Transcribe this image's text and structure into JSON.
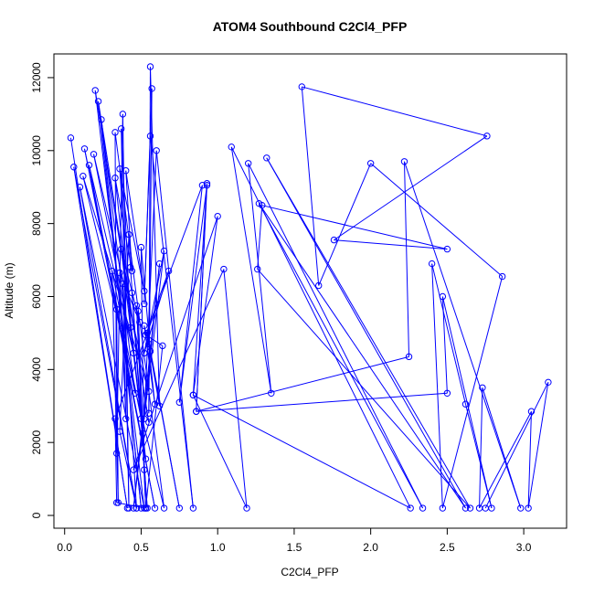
{
  "chart_data": {
    "type": "scatter",
    "title": "ATOM4 Southbound C2Cl4_PFP",
    "xlabel": "C2Cl4_PFP",
    "ylabel": "Altitude (m)",
    "xlim": [
      -0.07,
      3.28
    ],
    "ylim": [
      -350,
      12650
    ],
    "xticks": [
      0.0,
      0.5,
      1.0,
      1.5,
      2.0,
      2.5,
      3.0
    ],
    "xtick_labels": [
      "0.0",
      "0.5",
      "1.0",
      "1.5",
      "2.0",
      "2.5",
      "3.0"
    ],
    "yticks": [
      0,
      2000,
      4000,
      6000,
      8000,
      10000,
      12000
    ],
    "ytick_labels": [
      "0",
      "2000",
      "4000",
      "6000",
      "8000",
      "10000",
      "12000"
    ],
    "grid": false,
    "legend": "none",
    "marker": "open-circle",
    "connected": true,
    "color": "#0000ff",
    "series": [
      {
        "points": [
          [
            0.04,
            10350
          ],
          [
            0.41,
            200
          ],
          [
            0.06,
            9550
          ],
          [
            0.47,
            200
          ],
          [
            0.1,
            9000
          ],
          [
            0.52,
            200
          ],
          [
            0.2,
            11650
          ],
          [
            0.55,
            2550
          ],
          [
            0.22,
            11350
          ],
          [
            0.5,
            200
          ],
          [
            0.24,
            10850
          ],
          [
            0.46,
            3350
          ],
          [
            0.13,
            10050
          ],
          [
            0.59,
            200
          ],
          [
            0.16,
            9600
          ],
          [
            0.45,
            4450
          ],
          [
            0.19,
            9900
          ],
          [
            0.55,
            3400
          ],
          [
            0.12,
            9300
          ],
          [
            0.65,
            200
          ],
          [
            0.33,
            10500
          ],
          [
            0.34,
            1700
          ],
          [
            0.38,
            11000
          ],
          [
            0.42,
            200
          ],
          [
            0.37,
            10600
          ],
          [
            0.43,
            5150
          ],
          [
            0.36,
            9500
          ],
          [
            0.52,
            6150
          ],
          [
            0.4,
            9450
          ],
          [
            0.44,
            6700
          ],
          [
            0.33,
            9250
          ],
          [
            0.5,
            2650
          ],
          [
            0.31,
            6700
          ],
          [
            0.35,
            350
          ],
          [
            0.34,
            5650
          ],
          [
            0.53,
            1550
          ],
          [
            0.37,
            7300
          ],
          [
            0.49,
            5300
          ],
          [
            0.36,
            6650
          ],
          [
            0.4,
            2650
          ],
          [
            0.38,
            6350
          ],
          [
            0.47,
            200
          ],
          [
            0.36,
            2300
          ],
          [
            0.42,
            7700
          ],
          [
            0.43,
            6800
          ],
          [
            0.54,
            200
          ],
          [
            0.44,
            6100
          ],
          [
            0.51,
            2250
          ],
          [
            0.47,
            5750
          ],
          [
            0.53,
            200
          ],
          [
            0.48,
            5600
          ],
          [
            0.52,
            1250
          ],
          [
            0.5,
            7350
          ],
          [
            0.56,
            4500
          ],
          [
            0.52,
            5200
          ],
          [
            0.59,
            3050
          ],
          [
            0.54,
            5000
          ],
          [
            0.75,
            200
          ],
          [
            0.55,
            4700
          ],
          [
            0.62,
            3000
          ],
          [
            0.56,
            12300
          ],
          [
            0.55,
            2800
          ],
          [
            0.57,
            11700
          ],
          [
            0.52,
            5800
          ],
          [
            0.56,
            10400
          ],
          [
            0.84,
            200
          ],
          [
            0.6,
            10000
          ],
          [
            0.52,
            2650
          ],
          [
            0.62,
            6900
          ],
          [
            0.45,
            200
          ],
          [
            0.65,
            7250
          ],
          [
            0.52,
            4450
          ],
          [
            0.68,
            6700
          ],
          [
            0.53,
            4950
          ],
          [
            0.64,
            4650
          ],
          [
            0.53,
            200
          ],
          [
            0.34,
            350
          ],
          [
            0.33,
            2650
          ],
          [
            0.9,
            9050
          ],
          [
            0.75,
            3100
          ],
          [
            0.93,
            9050
          ],
          [
            0.86,
            2850
          ],
          [
            0.93,
            9100
          ],
          [
            0.84,
            3300
          ],
          [
            1.0,
            8200
          ],
          [
            0.45,
            1250
          ],
          [
            1.04,
            6750
          ],
          [
            1.19,
            200
          ],
          [
            0.84,
            3300
          ],
          [
            2.26,
            200
          ],
          [
            1.09,
            10100
          ],
          [
            1.35,
            3350
          ],
          [
            1.2,
            9650
          ],
          [
            2.34,
            200
          ],
          [
            1.27,
            8550
          ],
          [
            2.62,
            200
          ],
          [
            1.32,
            9800
          ],
          [
            2.65,
            200
          ],
          [
            1.26,
            6750
          ],
          [
            1.29,
            8500
          ],
          [
            2.5,
            7300
          ],
          [
            1.76,
            7550
          ],
          [
            2.76,
            10400
          ],
          [
            1.55,
            11750
          ],
          [
            1.66,
            6300
          ],
          [
            2.0,
            9650
          ],
          [
            2.86,
            6550
          ],
          [
            2.47,
            200
          ],
          [
            2.4,
            6900
          ],
          [
            2.62,
            3050
          ],
          [
            2.79,
            200
          ],
          [
            2.47,
            6000
          ],
          [
            2.5,
            3350
          ],
          [
            0.86,
            2850
          ],
          [
            2.25,
            4350
          ],
          [
            2.22,
            9700
          ],
          [
            2.98,
            200
          ],
          [
            2.73,
            3500
          ],
          [
            2.71,
            200
          ],
          [
            3.05,
            2850
          ],
          [
            3.03,
            200
          ],
          [
            3.16,
            3650
          ],
          [
            2.75,
            200
          ]
        ]
      }
    ]
  }
}
